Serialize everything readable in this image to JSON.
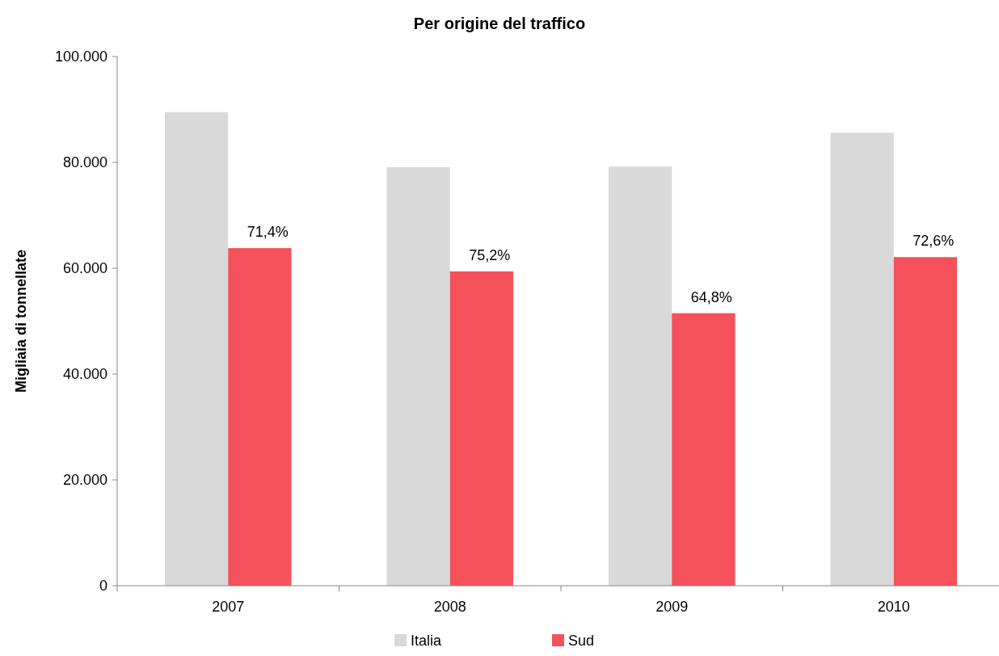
{
  "chart_data": {
    "type": "bar",
    "title": "Per origine del traffico",
    "ylabel": "Migliaia di tonnellate",
    "categories": [
      "2007",
      "2008",
      "2009",
      "2010"
    ],
    "series": [
      {
        "name": "Italia",
        "color": "#d9d9d9",
        "values": [
          89500,
          79100,
          79200,
          85600
        ]
      },
      {
        "name": "Sud",
        "color": "#f5515a",
        "values": [
          63800,
          59400,
          51500,
          62100
        ]
      }
    ],
    "annotations": [
      {
        "text": "71,4%",
        "x": "2007",
        "y": 63800
      },
      {
        "text": "75,2%",
        "x": "2008",
        "y": 59400
      },
      {
        "text": "64,8%",
        "x": "2009",
        "y": 51500
      },
      {
        "text": "72,6%",
        "x": "2010",
        "y": 62100
      }
    ],
    "ylim": [
      0,
      100000
    ],
    "yticks": [
      0,
      {
        "value": 20000,
        "label": "20.000"
      },
      {
        "value": 40000,
        "label": "40.000"
      },
      {
        "value": 60000,
        "label": "60.000"
      },
      {
        "value": 80000,
        "label": "80.000"
      },
      {
        "value": 100000,
        "label": "100.000"
      }
    ],
    "grid": false,
    "legend": "bottom"
  }
}
